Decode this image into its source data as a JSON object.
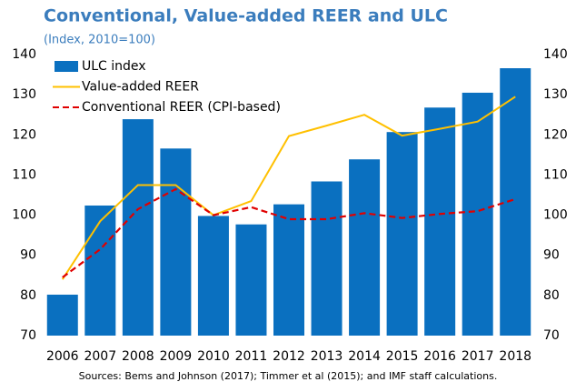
{
  "chart_data": {
    "type": "bar_line",
    "title": "Conventional, Value-added REER and ULC",
    "subtitle": "(Index, 2010=100)",
    "source": "Sources: Bems and Johnson (2017); Timmer et al (2015); and IMF staff calculations.",
    "categories": [
      "2006",
      "2007",
      "2008",
      "2009",
      "2010",
      "2011",
      "2012",
      "2013",
      "2014",
      "2015",
      "2016",
      "2017",
      "2018"
    ],
    "series": [
      {
        "name": "ULC index",
        "type": "bar",
        "color": "#0a70c0",
        "values": [
          80.2,
          102.4,
          123.9,
          116.6,
          99.8,
          97.7,
          102.7,
          108.4,
          113.9,
          120.7,
          126.8,
          130.5,
          136.6
        ]
      },
      {
        "name": "Value-added REER",
        "type": "line",
        "color": "#ffc000",
        "dash": false,
        "values": [
          84,
          98.5,
          107.5,
          107.5,
          100,
          103.5,
          119.7,
          122.3,
          125,
          119.8,
          121.5,
          123.3,
          129.5
        ]
      },
      {
        "name": "Conventional REER (CPI-based)",
        "type": "line",
        "color": "#e00000",
        "dash": true,
        "values": [
          84.5,
          91.5,
          101.5,
          106.5,
          100,
          102,
          99,
          99,
          100.5,
          99.3,
          100.3,
          101,
          104
        ]
      }
    ],
    "ylim": [
      70,
      140
    ],
    "yticks": [
      70,
      80,
      90,
      100,
      110,
      120,
      130,
      140
    ],
    "y2lim": [
      70,
      140
    ],
    "y2ticks": [
      70,
      80,
      90,
      100,
      110,
      120,
      130,
      140
    ],
    "legend": "top-left",
    "grid": false
  }
}
